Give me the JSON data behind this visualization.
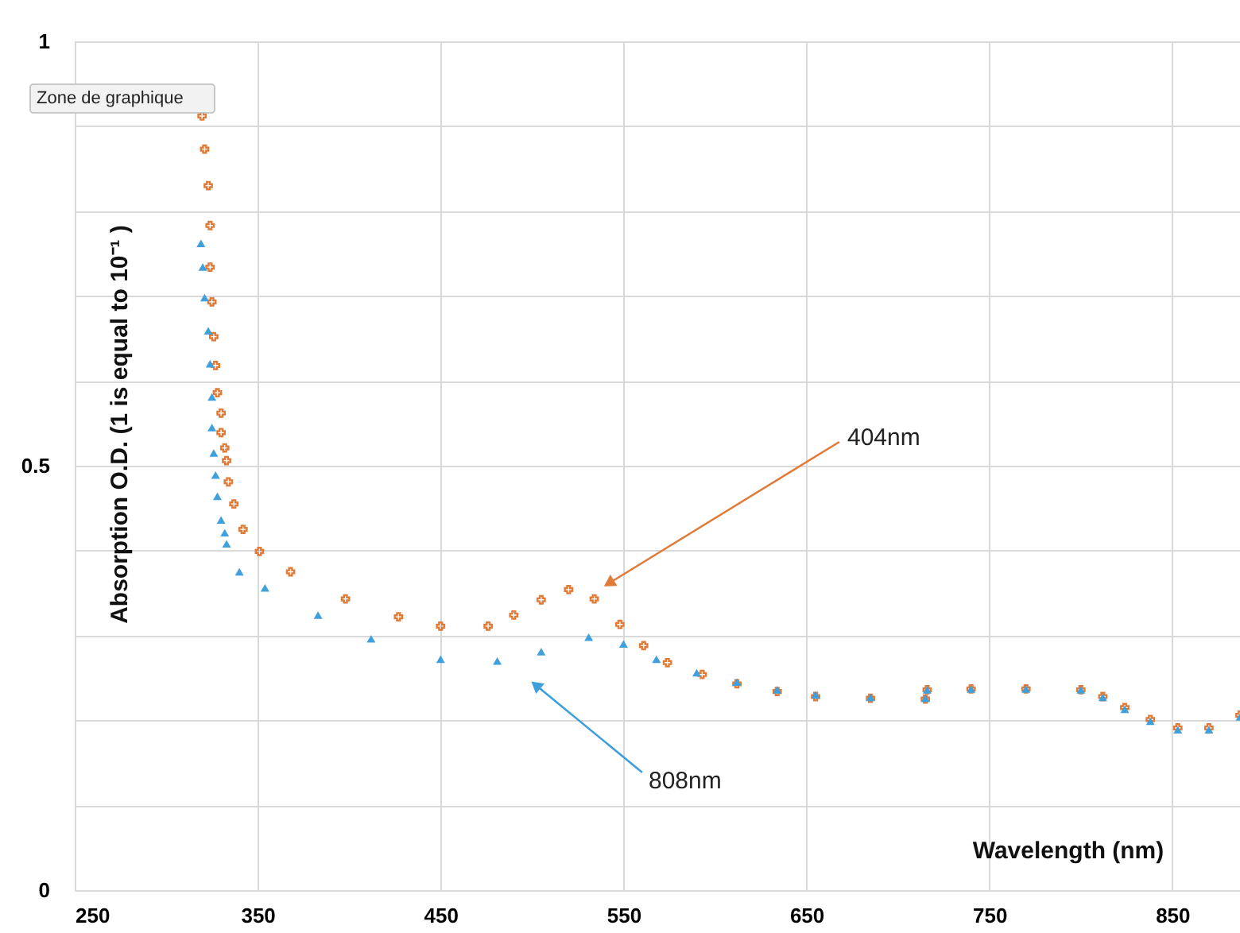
{
  "chart_data": {
    "type": "scatter",
    "xlabel": "Wavelength (nm)",
    "ylabel": "Absorption O.D. (1 is equal to 10⁻¹ )",
    "xlim": [
      250,
      887
    ],
    "ylim": [
      0,
      1
    ],
    "xticks": [
      250,
      350,
      450,
      550,
      650,
      750,
      850
    ],
    "yticks": [
      0,
      {
        "value": 0.1,
        "label": null
      },
      {
        "value": 0.2,
        "label": null
      },
      {
        "value": 0.3,
        "label": null
      },
      {
        "value": 0.4,
        "label": null
      },
      0.5,
      {
        "value": 0.6,
        "label": null
      },
      {
        "value": 0.7,
        "label": null
      },
      {
        "value": 0.8,
        "label": null
      },
      {
        "value": 0.9,
        "label": null
      },
      1
    ],
    "grid": true,
    "series": [
      {
        "color": "#e07b39",
        "marker": "cross",
        "x": [
          319.6,
          321,
          323,
          324,
          324,
          325,
          326,
          327,
          328,
          330,
          330,
          332,
          333,
          334,
          337,
          342,
          351,
          368,
          398,
          427,
          450,
          476,
          490,
          505,
          520,
          534,
          548,
          561,
          574,
          593,
          612,
          634,
          655,
          685,
          715,
          716,
          740,
          770,
          800,
          812,
          824,
          838,
          853,
          870,
          887
        ],
        "values": [
          0.912,
          0.873,
          0.83,
          0.783,
          0.734,
          0.693,
          0.652,
          0.618,
          0.586,
          0.562,
          0.539,
          0.521,
          0.506,
          0.481,
          0.455,
          0.425,
          0.399,
          0.375,
          0.343,
          0.322,
          0.311,
          0.311,
          0.324,
          0.342,
          0.354,
          0.343,
          0.313,
          0.288,
          0.268,
          0.254,
          0.243,
          0.234,
          0.228,
          0.226,
          0.225,
          0.236,
          0.237,
          0.237,
          0.236,
          0.228,
          0.215,
          0.201,
          0.191,
          0.191,
          0.206
        ]
      },
      {
        "color": "#3fa0dd",
        "marker": "triangle",
        "x": [
          319,
          320,
          321,
          323,
          324,
          325,
          325,
          326,
          327,
          328,
          330,
          332,
          333,
          340,
          354,
          383,
          412,
          450,
          481,
          505,
          531,
          550,
          568,
          590,
          612,
          634,
          655,
          685,
          715,
          716,
          740,
          770,
          800,
          812,
          824,
          838,
          853,
          870,
          887
        ],
        "values": [
          0.762,
          0.734,
          0.698,
          0.659,
          0.62,
          0.581,
          0.545,
          0.515,
          0.489,
          0.464,
          0.436,
          0.421,
          0.408,
          0.375,
          0.356,
          0.324,
          0.296,
          0.272,
          0.27,
          0.281,
          0.298,
          0.29,
          0.272,
          0.256,
          0.245,
          0.236,
          0.23,
          0.227,
          0.226,
          0.236,
          0.237,
          0.237,
          0.236,
          0.227,
          0.213,
          0.199,
          0.189,
          0.189,
          0.204
        ]
      }
    ],
    "annotations": [
      "Zone de graphique",
      "404nm",
      "808nm"
    ]
  }
}
